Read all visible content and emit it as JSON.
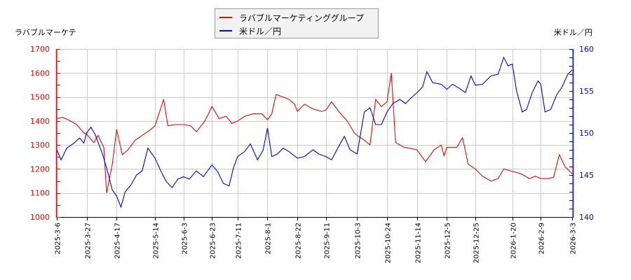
{
  "legend": {
    "items": [
      {
        "label": "ラバブルマーケティンググループ",
        "color": "#ff0000"
      },
      {
        "label": "米ドル／円",
        "color": "#0000ff"
      }
    ]
  },
  "axes": {
    "left_title": "ラバブルマーケテ",
    "right_title": "米ドル／円"
  },
  "chart_data": {
    "type": "line",
    "title": "",
    "xlabel": "",
    "ylabel_left": "ラバブルマーケテ",
    "ylabel_right": "米ドル／円",
    "x_ticks": [
      "2025-3-6",
      "2025-3-27",
      "2025-4-17",
      "2025-5-14",
      "2025-6-3",
      "2025-6-23",
      "2025-7-11",
      "2025-8-1",
      "2025-8-22",
      "2025-9-11",
      "2025-10-3",
      "2025-10-24",
      "2025-11-14",
      "2025-12-5",
      "2025-12-25",
      "2026-1-20",
      "2026-2-9",
      "2026-3-3"
    ],
    "y_left": {
      "ticks": [
        1000,
        1100,
        1200,
        1300,
        1400,
        1500,
        1600,
        1700
      ],
      "range": [
        1000,
        1700
      ],
      "color": "#ff0000"
    },
    "y_right": {
      "ticks": [
        140,
        145,
        150,
        155,
        160
      ],
      "range": [
        140,
        160
      ],
      "color": "#0000ff"
    },
    "grid": true,
    "legend_position": "top-center",
    "series": [
      {
        "name": "ラバブルマーケティンググループ",
        "axis": "left",
        "color": "#ff0000",
        "points": [
          [
            "2025-3-6",
            1410
          ],
          [
            "2025-3-10",
            1415
          ],
          [
            "2025-3-14",
            1405
          ],
          [
            "2025-3-20",
            1385
          ],
          [
            "2025-3-25",
            1350
          ],
          [
            "2025-3-27",
            1345
          ],
          [
            "2025-4-1",
            1310
          ],
          [
            "2025-4-4",
            1340
          ],
          [
            "2025-4-8",
            1290
          ],
          [
            "2025-4-10",
            1100
          ],
          [
            "2025-4-14",
            1220
          ],
          [
            "2025-4-17",
            1365
          ],
          [
            "2025-4-21",
            1260
          ],
          [
            "2025-4-25",
            1280
          ],
          [
            "2025-4-30",
            1320
          ],
          [
            "2025-5-5",
            1340
          ],
          [
            "2025-5-10",
            1360
          ],
          [
            "2025-5-14",
            1380
          ],
          [
            "2025-5-20",
            1490
          ],
          [
            "2025-5-23",
            1380
          ],
          [
            "2025-5-28",
            1385
          ],
          [
            "2025-6-3",
            1385
          ],
          [
            "2025-6-8",
            1380
          ],
          [
            "2025-6-12",
            1355
          ],
          [
            "2025-6-18",
            1400
          ],
          [
            "2025-6-23",
            1460
          ],
          [
            "2025-6-28",
            1410
          ],
          [
            "2025-7-3",
            1420
          ],
          [
            "2025-7-7",
            1390
          ],
          [
            "2025-7-11",
            1400
          ],
          [
            "2025-7-16",
            1420
          ],
          [
            "2025-7-22",
            1430
          ],
          [
            "2025-7-28",
            1430
          ],
          [
            "2025-8-1",
            1405
          ],
          [
            "2025-8-4",
            1430
          ],
          [
            "2025-8-7",
            1510
          ],
          [
            "2025-8-12",
            1500
          ],
          [
            "2025-8-16",
            1490
          ],
          [
            "2025-8-20",
            1470
          ],
          [
            "2025-8-22",
            1440
          ],
          [
            "2025-8-27",
            1470
          ],
          [
            "2025-9-2",
            1450
          ],
          [
            "2025-9-8",
            1440
          ],
          [
            "2025-9-11",
            1445
          ],
          [
            "2025-9-15",
            1480
          ],
          [
            "2025-9-20",
            1440
          ],
          [
            "2025-9-26",
            1400
          ],
          [
            "2025-10-1",
            1350
          ],
          [
            "2025-10-3",
            1340
          ],
          [
            "2025-10-8",
            1320
          ],
          [
            "2025-10-12",
            1300
          ],
          [
            "2025-10-16",
            1490
          ],
          [
            "2025-10-20",
            1460
          ],
          [
            "2025-10-24",
            1480
          ],
          [
            "2025-10-27",
            1600
          ],
          [
            "2025-10-30",
            1310
          ],
          [
            "2025-11-5",
            1290
          ],
          [
            "2025-11-10",
            1285
          ],
          [
            "2025-11-14",
            1280
          ],
          [
            "2025-11-20",
            1230
          ],
          [
            "2025-11-26",
            1280
          ],
          [
            "2025-12-1",
            1300
          ],
          [
            "2025-12-3",
            1255
          ],
          [
            "2025-12-5",
            1290
          ],
          [
            "2025-12-12",
            1290
          ],
          [
            "2025-12-16",
            1330
          ],
          [
            "2025-12-20",
            1220
          ],
          [
            "2025-12-25",
            1200
          ],
          [
            "2025-12-30",
            1170
          ],
          [
            "2026-1-5",
            1150
          ],
          [
            "2026-1-10",
            1160
          ],
          [
            "2026-1-14",
            1200
          ],
          [
            "2026-1-20",
            1190
          ],
          [
            "2026-1-26",
            1180
          ],
          [
            "2026-2-1",
            1160
          ],
          [
            "2026-2-5",
            1170
          ],
          [
            "2026-2-9",
            1160
          ],
          [
            "2026-2-14",
            1160
          ],
          [
            "2026-2-18",
            1165
          ],
          [
            "2026-2-22",
            1260
          ],
          [
            "2026-2-26",
            1210
          ],
          [
            "2026-3-3",
            1180
          ]
        ]
      },
      {
        "name": "米ドル／円",
        "axis": "right",
        "color": "#0000ff",
        "points": [
          [
            "2025-3-6",
            148.0
          ],
          [
            "2025-3-9",
            146.8
          ],
          [
            "2025-3-13",
            148.2
          ],
          [
            "2025-3-18",
            148.8
          ],
          [
            "2025-3-22",
            149.4
          ],
          [
            "2025-3-25",
            148.8
          ],
          [
            "2025-3-27",
            150.0
          ],
          [
            "2025-3-30",
            150.7
          ],
          [
            "2025-4-2",
            149.8
          ],
          [
            "2025-4-6",
            148.0
          ],
          [
            "2025-4-8",
            147.0
          ],
          [
            "2025-4-11",
            145.2
          ],
          [
            "2025-4-14",
            143.2
          ],
          [
            "2025-4-17",
            142.5
          ],
          [
            "2025-4-20",
            141.2
          ],
          [
            "2025-4-23",
            143.0
          ],
          [
            "2025-4-27",
            143.8
          ],
          [
            "2025-5-1",
            145.0
          ],
          [
            "2025-5-5",
            145.5
          ],
          [
            "2025-5-9",
            148.2
          ],
          [
            "2025-5-14",
            147.0
          ],
          [
            "2025-5-18",
            145.5
          ],
          [
            "2025-5-22",
            144.2
          ],
          [
            "2025-5-26",
            143.5
          ],
          [
            "2025-5-30",
            144.5
          ],
          [
            "2025-6-3",
            144.8
          ],
          [
            "2025-6-7",
            144.5
          ],
          [
            "2025-6-12",
            145.5
          ],
          [
            "2025-6-17",
            144.8
          ],
          [
            "2025-6-23",
            146.2
          ],
          [
            "2025-6-27",
            145.4
          ],
          [
            "2025-7-1",
            144.0
          ],
          [
            "2025-7-5",
            143.7
          ],
          [
            "2025-7-8",
            145.8
          ],
          [
            "2025-7-11",
            147.2
          ],
          [
            "2025-7-16",
            147.8
          ],
          [
            "2025-7-20",
            148.7
          ],
          [
            "2025-7-25",
            146.8
          ],
          [
            "2025-7-29",
            148.0
          ],
          [
            "2025-8-1",
            150.6
          ],
          [
            "2025-8-4",
            147.2
          ],
          [
            "2025-8-8",
            147.5
          ],
          [
            "2025-8-12",
            148.2
          ],
          [
            "2025-8-16",
            147.8
          ],
          [
            "2025-8-22",
            147.0
          ],
          [
            "2025-8-27",
            147.2
          ],
          [
            "2025-9-2",
            148.0
          ],
          [
            "2025-9-6",
            147.5
          ],
          [
            "2025-9-11",
            147.2
          ],
          [
            "2025-9-15",
            146.8
          ],
          [
            "2025-9-20",
            148.4
          ],
          [
            "2025-9-24",
            149.6
          ],
          [
            "2025-9-28",
            148.0
          ],
          [
            "2025-10-3",
            147.5
          ],
          [
            "2025-10-8",
            152.5
          ],
          [
            "2025-10-12",
            153.0
          ],
          [
            "2025-10-16",
            151.0
          ],
          [
            "2025-10-20",
            151.0
          ],
          [
            "2025-10-24",
            152.5
          ],
          [
            "2025-10-28",
            153.5
          ],
          [
            "2025-11-2",
            154.0
          ],
          [
            "2025-11-6",
            153.5
          ],
          [
            "2025-11-10",
            154.2
          ],
          [
            "2025-11-14",
            154.8
          ],
          [
            "2025-11-18",
            155.5
          ],
          [
            "2025-11-21",
            157.3
          ],
          [
            "2025-11-25",
            156.0
          ],
          [
            "2025-12-1",
            155.8
          ],
          [
            "2025-12-5",
            155.2
          ],
          [
            "2025-12-9",
            155.8
          ],
          [
            "2025-12-14",
            155.3
          ],
          [
            "2025-12-18",
            154.8
          ],
          [
            "2025-12-22",
            156.8
          ],
          [
            "2025-12-25",
            155.7
          ],
          [
            "2025-12-30",
            155.8
          ],
          [
            "2026-1-5",
            156.8
          ],
          [
            "2026-1-10",
            157.0
          ],
          [
            "2026-1-14",
            159.0
          ],
          [
            "2026-1-17",
            158.0
          ],
          [
            "2026-1-20",
            158.2
          ],
          [
            "2026-1-23",
            155.0
          ],
          [
            "2026-1-27",
            152.5
          ],
          [
            "2026-1-30",
            152.8
          ],
          [
            "2026-2-3",
            154.8
          ],
          [
            "2026-2-7",
            156.2
          ],
          [
            "2026-2-9",
            155.8
          ],
          [
            "2026-2-12",
            152.5
          ],
          [
            "2026-2-16",
            152.8
          ],
          [
            "2026-2-20",
            154.5
          ],
          [
            "2026-2-24",
            155.5
          ],
          [
            "2026-2-28",
            157.0
          ],
          [
            "2026-3-3",
            157.5
          ]
        ]
      }
    ]
  }
}
